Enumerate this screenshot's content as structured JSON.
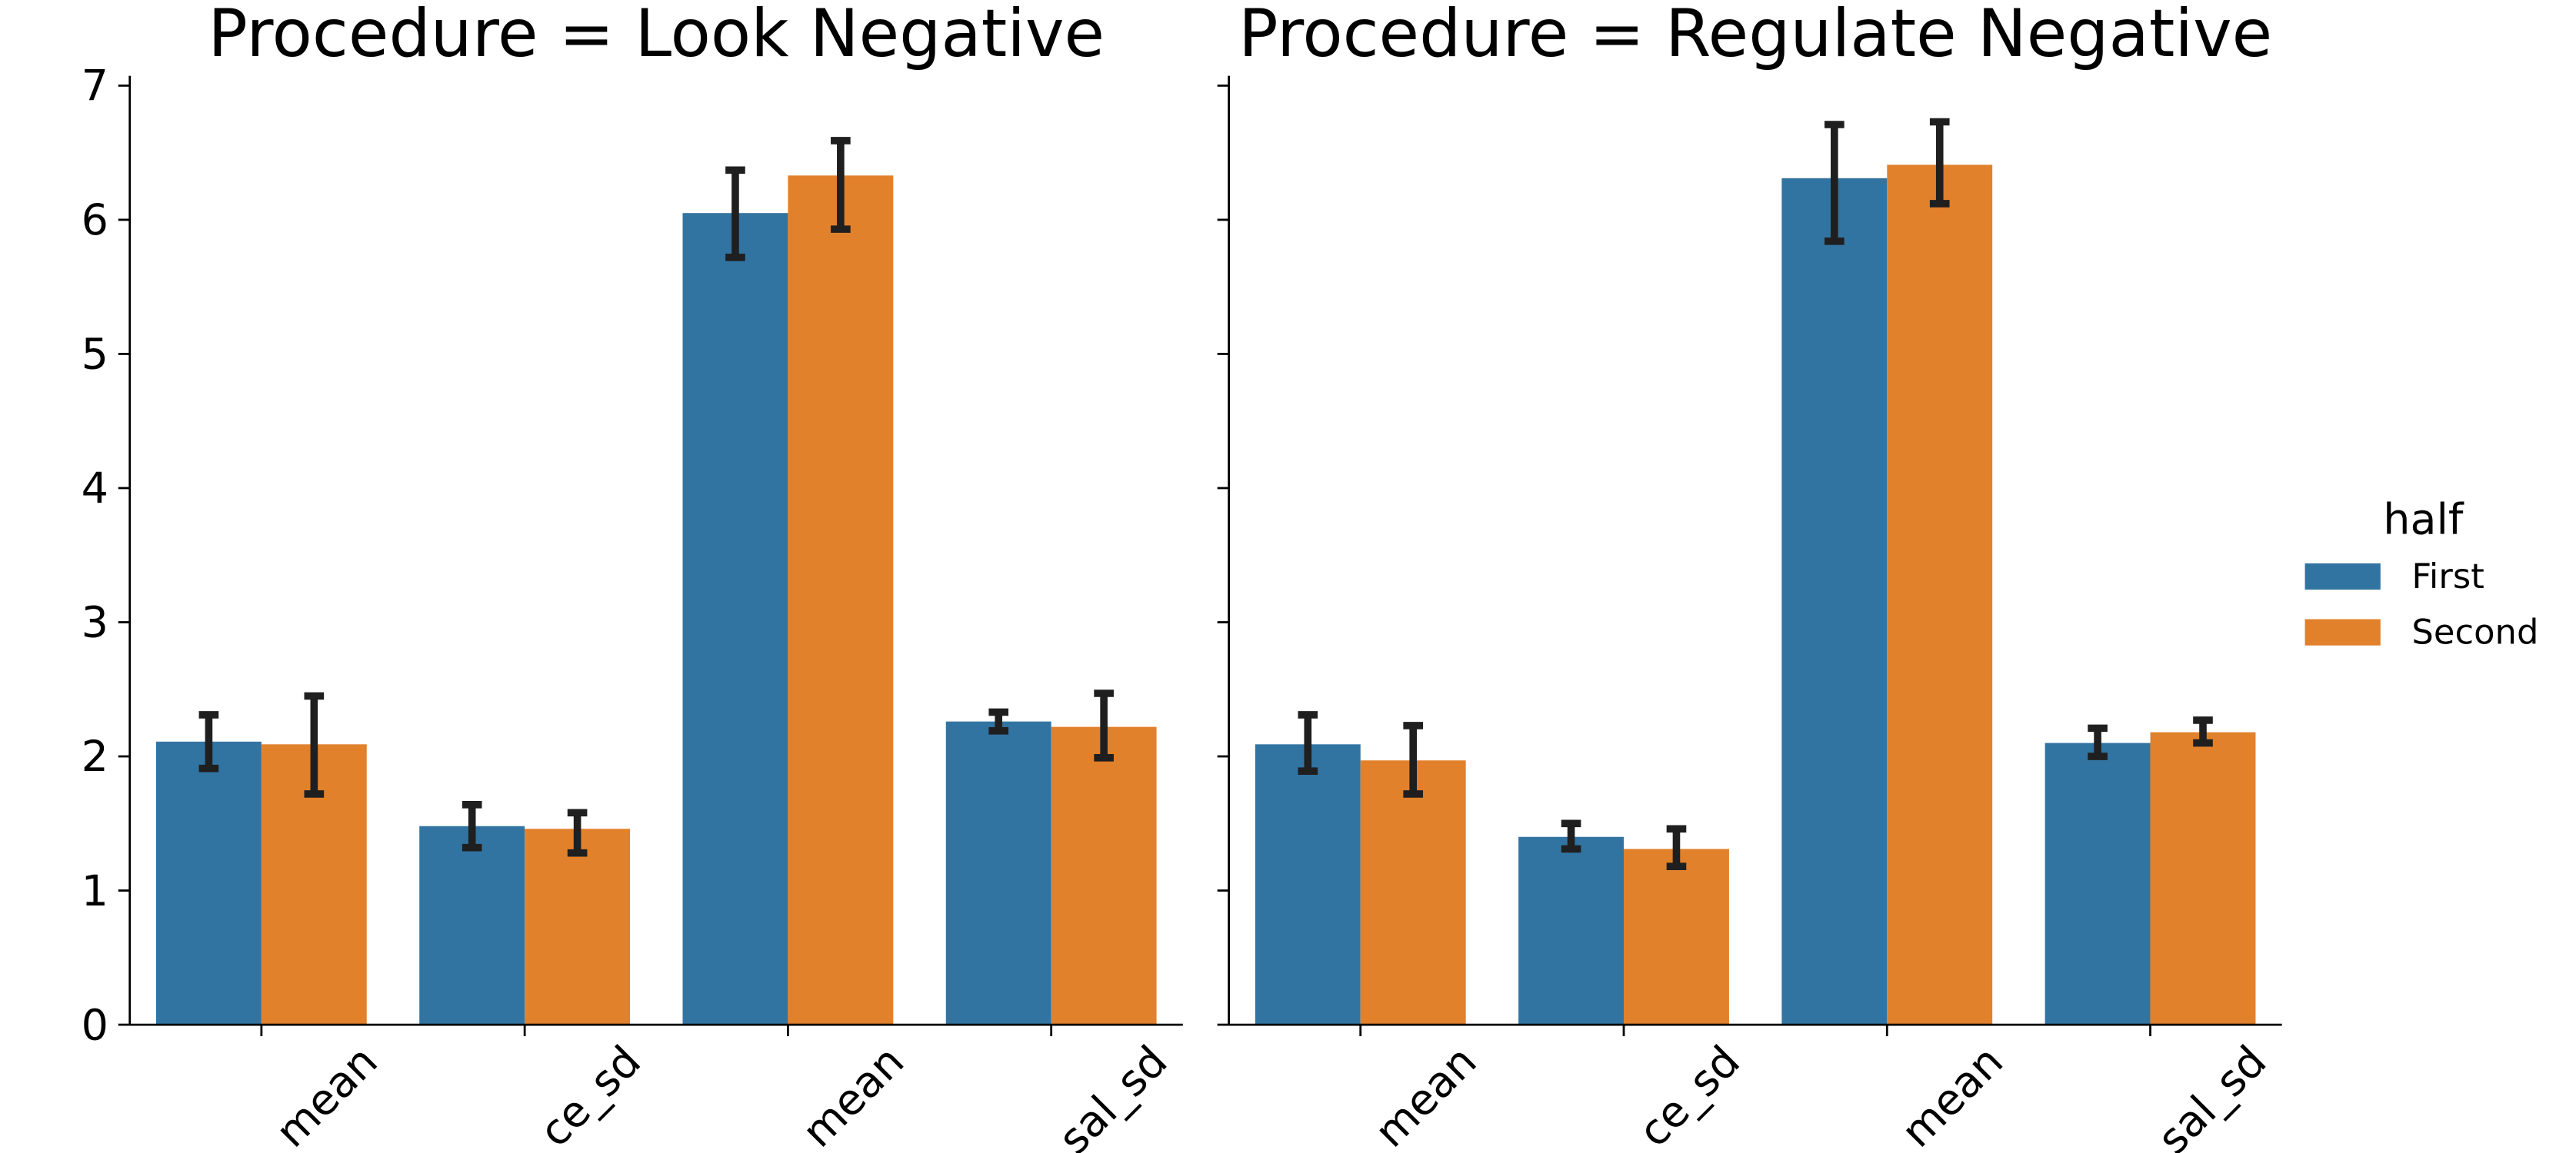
{
  "chart_data": [
    {
      "type": "bar",
      "title": "Procedure = Look Negative",
      "categories": [
        "mean",
        "ce_sd",
        "mean",
        "sal_sd"
      ],
      "series": [
        {
          "name": "First",
          "color": "#3274a1",
          "values": [
            2.11,
            1.48,
            6.05,
            2.26
          ],
          "ci_low": [
            1.91,
            1.32,
            5.72,
            2.19
          ],
          "ci_high": [
            2.31,
            1.64,
            6.37,
            2.33
          ]
        },
        {
          "name": "Second",
          "color": "#e1812c",
          "values": [
            2.09,
            1.46,
            6.33,
            2.22
          ],
          "ci_low": [
            1.72,
            1.28,
            5.93,
            1.99
          ],
          "ci_high": [
            2.45,
            1.58,
            6.59,
            2.47
          ]
        }
      ],
      "ylim": [
        0,
        7
      ],
      "yticks": [
        0,
        1,
        2,
        3,
        4,
        5,
        6,
        7
      ],
      "show_ytick_labels": true,
      "legend_title": "half",
      "legend": "right"
    },
    {
      "type": "bar",
      "title": "Procedure = Regulate Negative",
      "categories": [
        "mean",
        "ce_sd",
        "mean",
        "sal_sd"
      ],
      "series": [
        {
          "name": "First",
          "color": "#3274a1",
          "values": [
            2.09,
            1.4,
            6.31,
            2.1
          ],
          "ci_low": [
            1.89,
            1.31,
            5.84,
            2.0
          ],
          "ci_high": [
            2.31,
            1.5,
            6.71,
            2.21
          ]
        },
        {
          "name": "Second",
          "color": "#e1812c",
          "values": [
            1.97,
            1.31,
            6.41,
            2.18
          ],
          "ci_low": [
            1.72,
            1.18,
            6.12,
            2.1
          ],
          "ci_high": [
            2.23,
            1.46,
            6.73,
            2.27
          ]
        }
      ],
      "ylim": [
        0,
        7
      ],
      "yticks": [
        0,
        1,
        2,
        3,
        4,
        5,
        6,
        7
      ],
      "show_ytick_labels": false
    }
  ]
}
